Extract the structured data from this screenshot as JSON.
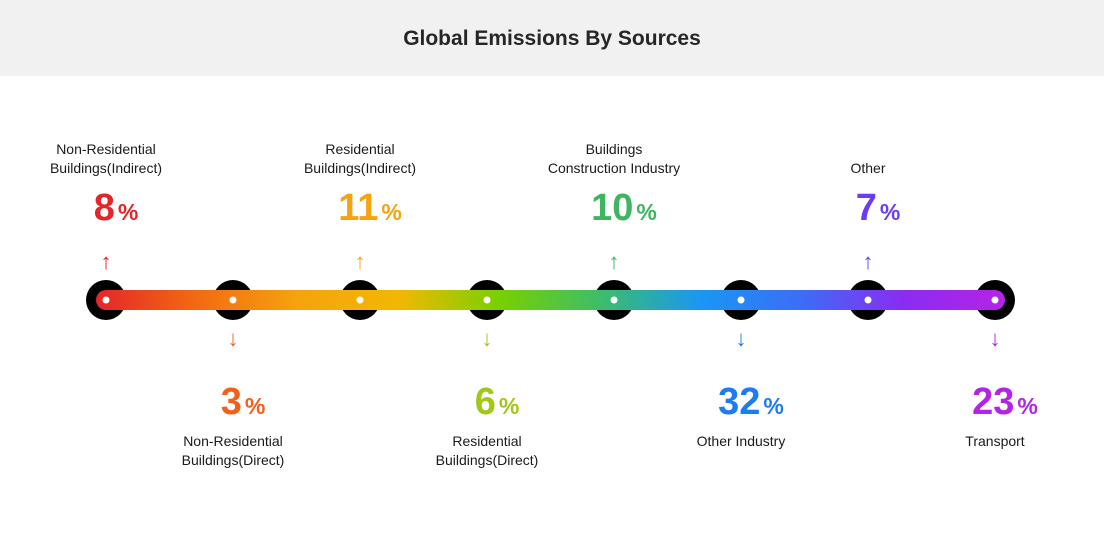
{
  "header": {
    "title": "Global Emissions By Sources"
  },
  "chart_data": {
    "type": "timeline",
    "title": "Global Emissions By Sources",
    "unit": "%",
    "items": [
      {
        "label": "Non-Residential\nBuildings(Indirect)",
        "value": 8,
        "unit": "%",
        "color": "#e4262a"
      },
      {
        "label": "Non-Residential\nBuildings(Direct)",
        "value": 3,
        "unit": "%",
        "color": "#f3601a"
      },
      {
        "label": "Residential\nBuildings(Indirect)",
        "value": 11,
        "unit": "%",
        "color": "#f5a30e"
      },
      {
        "label": "Residential\nBuildings(Direct)",
        "value": 6,
        "unit": "%",
        "color": "#9fc817"
      },
      {
        "label": "Buildings\nConstruction Industry",
        "value": 10,
        "unit": "%",
        "color": "#40b55f"
      },
      {
        "label": "Other Industry",
        "value": 32,
        "unit": "%",
        "color": "#1d7cf2"
      },
      {
        "label": "Other",
        "value": 7,
        "unit": "%",
        "color": "#6a3df5"
      },
      {
        "label": "Transport",
        "value": 23,
        "unit": "%",
        "color": "#b424e6"
      }
    ],
    "gradient_stops": [
      "#e4262a",
      "#f36a12",
      "#f5a30e",
      "#f2b800",
      "#78d000",
      "#3dbd6a",
      "#1a96f4",
      "#3d6cf6",
      "#8b2cf1",
      "#b424e6"
    ]
  }
}
